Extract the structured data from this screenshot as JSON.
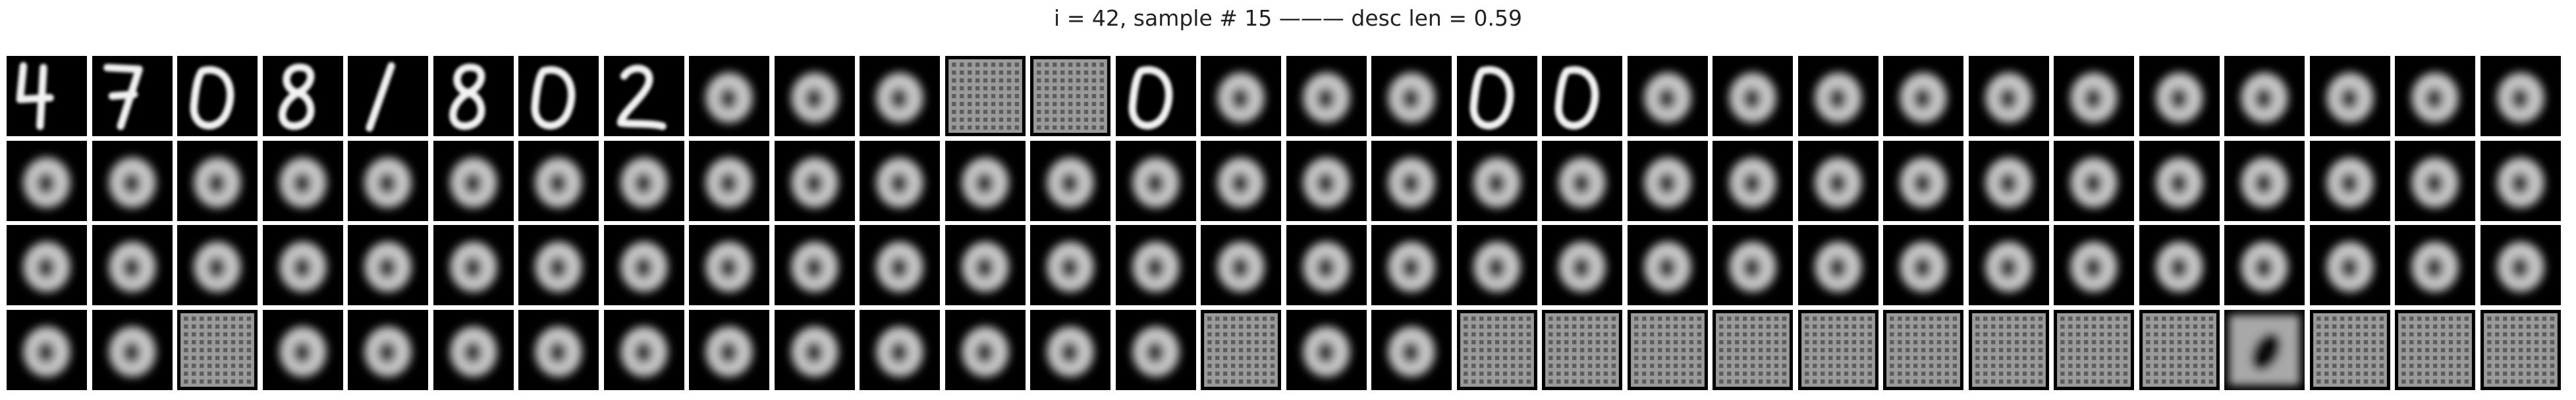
{
  "figure": {
    "title": "i = 42, sample # 15 ——— desc len = 0.59"
  },
  "grid": {
    "rows": 4,
    "cols": 30,
    "tiles": [
      [
        "digit-4",
        "digit-7",
        "digit-0",
        "digit-8",
        "digit-1",
        "digit-8",
        "digit-0",
        "digit-2",
        "blurry-0",
        "blurry-0",
        "blurry-0",
        "noise-grid",
        "noise-grid",
        "digit-0",
        "blurry-0",
        "blurry-0",
        "blurry-0",
        "digit-0",
        "digit-0",
        "blurry-0",
        "blurry-0",
        "blurry-0",
        "blurry-0",
        "blurry-0",
        "blurry-0",
        "blurry-0",
        "blurry-0",
        "blurry-0",
        "blurry-0",
        "blurry-0"
      ],
      [
        "blurry-0",
        "blurry-0",
        "blurry-0",
        "blurry-0",
        "blurry-0",
        "blurry-0",
        "blurry-0",
        "blurry-0",
        "blurry-0",
        "blurry-0",
        "blurry-0",
        "blurry-0",
        "blurry-0",
        "blurry-0",
        "blurry-0",
        "blurry-0",
        "blurry-0",
        "blurry-0",
        "blurry-0",
        "blurry-0",
        "blurry-0",
        "blurry-0",
        "blurry-0",
        "blurry-0",
        "blurry-0",
        "blurry-0",
        "blurry-0",
        "blurry-0",
        "blurry-0",
        "blurry-0"
      ],
      [
        "blurry-0",
        "blurry-0",
        "blurry-0",
        "blurry-0",
        "blurry-0",
        "blurry-0",
        "blurry-0",
        "blurry-0",
        "blurry-0",
        "blurry-0",
        "blurry-0",
        "blurry-0",
        "blurry-0",
        "blurry-0",
        "blurry-0",
        "blurry-0",
        "blurry-0",
        "blurry-0",
        "blurry-0",
        "blurry-0",
        "blurry-0",
        "blurry-0",
        "blurry-0",
        "blurry-0",
        "blurry-0",
        "blurry-0",
        "blurry-0",
        "blurry-0",
        "blurry-0",
        "blurry-0"
      ],
      [
        "blurry-0",
        "blurry-0",
        "noise-grid",
        "blurry-0",
        "blurry-0",
        "blurry-0",
        "blurry-0",
        "blurry-0",
        "blurry-0",
        "blurry-0",
        "blurry-0",
        "blurry-0",
        "blurry-0",
        "blurry-0",
        "noise-grid",
        "blurry-0",
        "blurry-0",
        "noise-grid",
        "noise-grid",
        "noise-grid",
        "noise-grid",
        "noise-grid",
        "noise-grid",
        "noise-grid",
        "noise-grid",
        "noise-grid",
        "dark-blob",
        "noise-grid",
        "noise-grid",
        "noise-grid"
      ]
    ]
  }
}
